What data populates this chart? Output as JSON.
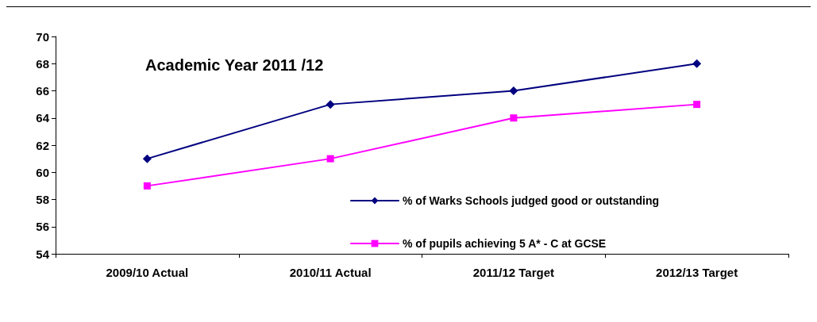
{
  "chart_data": {
    "type": "line",
    "title": "Academic Year 2011 /12",
    "categories": [
      "2009/10 Actual",
      "2010/11 Actual",
      "2011/12 Target",
      "2012/13 Target"
    ],
    "series": [
      {
        "name": "% of Warks Schools judged good or outstanding",
        "color": "#000080",
        "marker": "diamond",
        "values": [
          61,
          65,
          66,
          68
        ]
      },
      {
        "name": "% of pupils achieving 5 A* - C at GCSE",
        "color": "#ff00ff",
        "marker": "square",
        "values": [
          59,
          61,
          64,
          65
        ]
      }
    ],
    "ylim": [
      54,
      70
    ],
    "yticks": [
      54,
      56,
      58,
      60,
      62,
      64,
      66,
      68,
      70
    ],
    "grid": false,
    "legend": "bottom right",
    "line_style": "solid"
  }
}
